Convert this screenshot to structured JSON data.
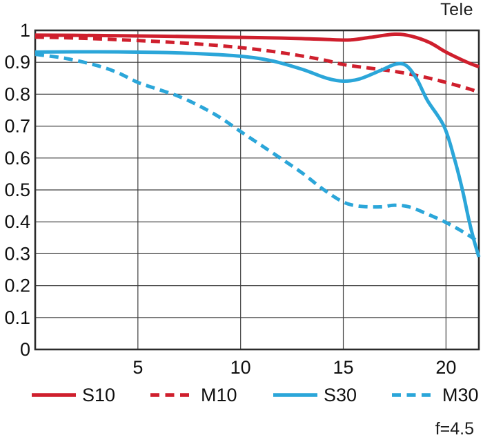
{
  "title": "Tele",
  "f_label": "f=4.5",
  "colors": {
    "red": "#cf1f2d",
    "blue": "#2ba6d9",
    "grid": "#3d3d3d",
    "frame": "#2b2b2b",
    "text": "#101010"
  },
  "chart_data": {
    "type": "line",
    "title": "Tele",
    "xlabel": "",
    "ylabel": "",
    "xlim": [
      0,
      21.6
    ],
    "ylim": [
      0,
      1
    ],
    "grid": true,
    "legend_position": "bottom",
    "xticks": [
      5,
      10,
      15,
      20
    ],
    "xtick_labels": [
      "5",
      "10",
      "15",
      "20"
    ],
    "yticks": [
      0,
      0.1,
      0.2,
      0.3,
      0.4,
      0.5,
      0.6,
      0.7,
      0.8,
      0.9,
      1
    ],
    "ytick_labels": [
      "0",
      "0.1",
      "0.2",
      "0.3",
      "0.4",
      "0.5",
      "0.6",
      "0.7",
      "0.8",
      "0.9",
      "1"
    ],
    "series": [
      {
        "name": "S10",
        "color": "#cf1f2d",
        "style": "solid",
        "points": [
          [
            0,
            0.985
          ],
          [
            3,
            0.984
          ],
          [
            6,
            0.982
          ],
          [
            9,
            0.979
          ],
          [
            12,
            0.976
          ],
          [
            14,
            0.972
          ],
          [
            15.3,
            0.97
          ],
          [
            16.3,
            0.978
          ],
          [
            17.5,
            0.988
          ],
          [
            18.3,
            0.982
          ],
          [
            19.2,
            0.962
          ],
          [
            20,
            0.932
          ],
          [
            21,
            0.901
          ],
          [
            21.6,
            0.886
          ]
        ]
      },
      {
        "name": "M10",
        "color": "#cf1f2d",
        "style": "dashed",
        "points": [
          [
            0,
            0.979
          ],
          [
            2,
            0.976
          ],
          [
            4,
            0.971
          ],
          [
            6,
            0.965
          ],
          [
            8,
            0.957
          ],
          [
            10,
            0.946
          ],
          [
            12,
            0.93
          ],
          [
            14,
            0.908
          ],
          [
            15,
            0.893
          ],
          [
            16,
            0.884
          ],
          [
            17,
            0.876
          ],
          [
            18,
            0.866
          ],
          [
            19,
            0.853
          ],
          [
            20,
            0.837
          ],
          [
            21,
            0.819
          ],
          [
            21.6,
            0.807
          ]
        ]
      },
      {
        "name": "S30",
        "color": "#2ba6d9",
        "style": "solid",
        "points": [
          [
            0,
            0.932
          ],
          [
            3,
            0.933
          ],
          [
            6,
            0.931
          ],
          [
            8,
            0.927
          ],
          [
            10,
            0.919
          ],
          [
            11.5,
            0.905
          ],
          [
            13,
            0.878
          ],
          [
            14.2,
            0.85
          ],
          [
            15,
            0.841
          ],
          [
            15.8,
            0.848
          ],
          [
            16.8,
            0.874
          ],
          [
            17.6,
            0.895
          ],
          [
            18.1,
            0.888
          ],
          [
            18.6,
            0.845
          ],
          [
            19.1,
            0.78
          ],
          [
            19.9,
            0.7
          ],
          [
            20.4,
            0.6
          ],
          [
            20.8,
            0.5
          ],
          [
            21.1,
            0.41
          ],
          [
            21.35,
            0.345
          ],
          [
            21.6,
            0.29
          ]
        ]
      },
      {
        "name": "M30",
        "color": "#2ba6d9",
        "style": "dashed",
        "points": [
          [
            0,
            0.925
          ],
          [
            1.5,
            0.912
          ],
          [
            3,
            0.89
          ],
          [
            4,
            0.868
          ],
          [
            5,
            0.837
          ],
          [
            6,
            0.815
          ],
          [
            7,
            0.793
          ],
          [
            8,
            0.763
          ],
          [
            9,
            0.727
          ],
          [
            10,
            0.683
          ],
          [
            11,
            0.64
          ],
          [
            12,
            0.597
          ],
          [
            13,
            0.553
          ],
          [
            14,
            0.503
          ],
          [
            15,
            0.462
          ],
          [
            15.8,
            0.449
          ],
          [
            16.8,
            0.447
          ],
          [
            17.5,
            0.452
          ],
          [
            18.2,
            0.447
          ],
          [
            19,
            0.427
          ],
          [
            20,
            0.398
          ],
          [
            21,
            0.362
          ],
          [
            21.6,
            0.336
          ]
        ]
      }
    ]
  },
  "legend": {
    "items": [
      {
        "label": "S10"
      },
      {
        "label": "M10"
      },
      {
        "label": "S30"
      },
      {
        "label": "M30"
      }
    ]
  }
}
